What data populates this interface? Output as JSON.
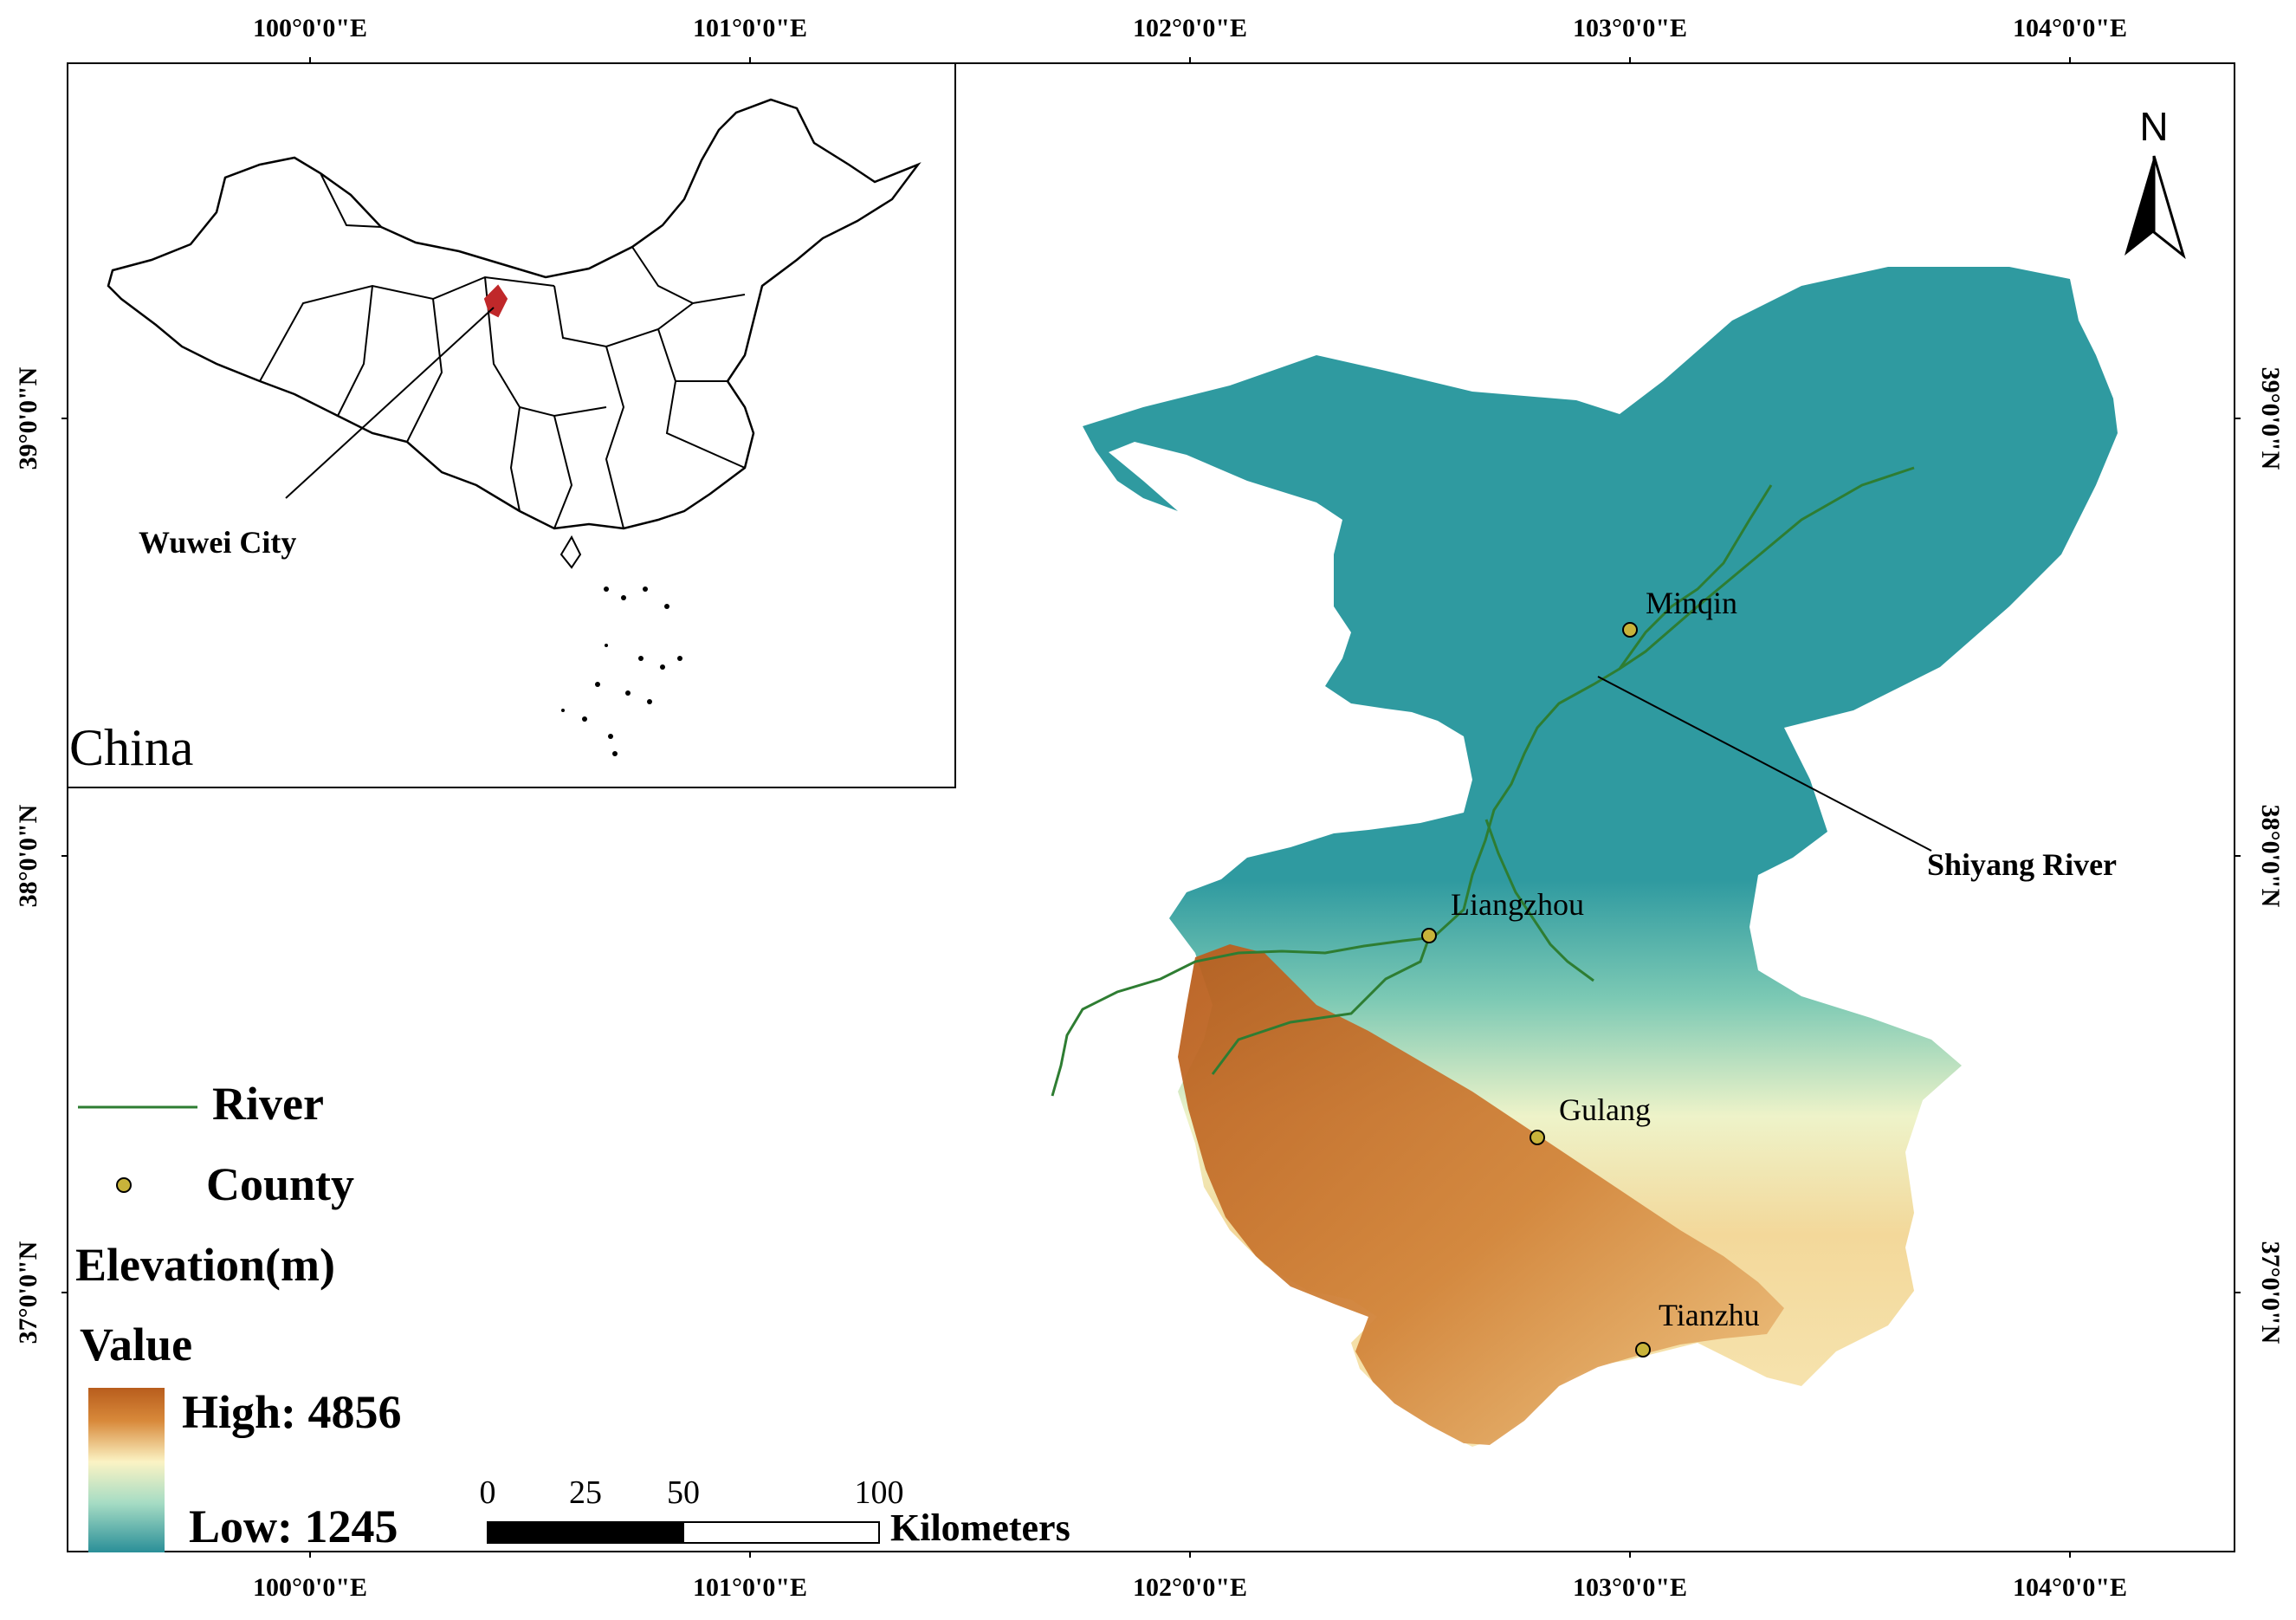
{
  "frame": {
    "x_ticks": [
      "100°0'0\"E",
      "101°0'0\"E",
      "102°0'0\"E",
      "103°0'0\"E",
      "104°0'0\"E"
    ],
    "y_ticks": [
      "39°0'0\"N",
      "38°0'0\"N",
      "37°0'0\"N"
    ]
  },
  "inset": {
    "country_label": "China",
    "city_label": "Wuwei City"
  },
  "north_arrow": {
    "label": "N"
  },
  "map": {
    "river_name": "Shiyang River",
    "counties": [
      {
        "name": "Minqin"
      },
      {
        "name": "Liangzhou"
      },
      {
        "name": "Gulang"
      },
      {
        "name": "Tianzhu"
      }
    ],
    "colors": {
      "river": "#2e7d32",
      "county_point": "#c8b33a",
      "low": "#2a8f98",
      "mid": "#fbf3c4",
      "high": "#b85d1d",
      "inset_highlight": "#c0282a"
    }
  },
  "legend": {
    "river_label": "River",
    "county_label": "County",
    "elevation_title": "Elevation(m)",
    "value_label": "Value",
    "high_label": "High: 4856",
    "low_label": "Low: 1245"
  },
  "scale_bar": {
    "ticks": [
      "0",
      "25",
      "50",
      "100"
    ],
    "unit": "Kilometers"
  }
}
